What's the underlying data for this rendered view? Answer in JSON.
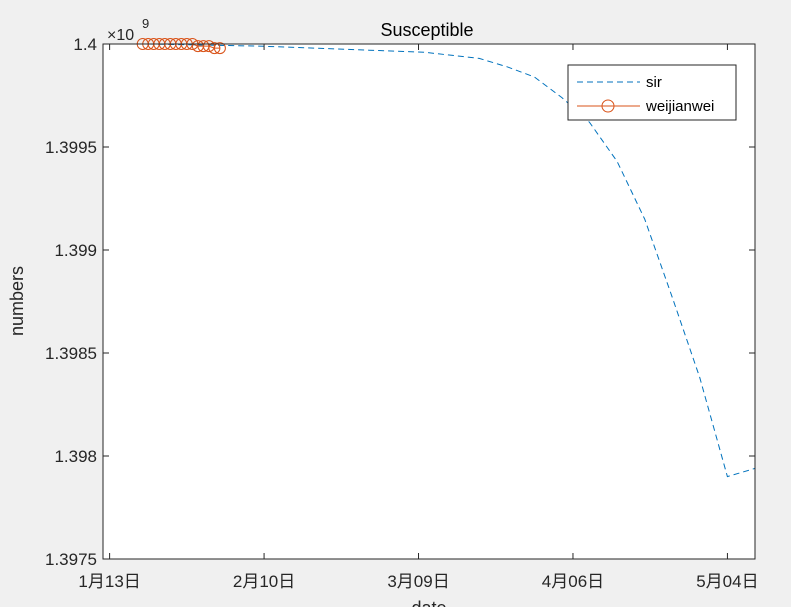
{
  "chart_data": {
    "type": "line",
    "title": "Susceptible",
    "xlabel": "date",
    "ylabel": "numbers",
    "y_exponent_prefix": "×10",
    "y_exponent_power": "9",
    "xlim": [
      "2020-01-13",
      "2020-05-09"
    ],
    "ylim": [
      1.3975,
      1.4
    ],
    "x_ticks": [
      {
        "date": "2020-01-13",
        "label": "1月13日"
      },
      {
        "date": "2020-02-10",
        "label": "2月10日"
      },
      {
        "date": "2020-03-09",
        "label": "3月09日"
      },
      {
        "date": "2020-04-06",
        "label": "4月06日"
      },
      {
        "date": "2020-05-04",
        "label": "5月04日"
      }
    ],
    "y_ticks": [
      {
        "value": 1.3975,
        "label": "1.3975"
      },
      {
        "value": 1.398,
        "label": "1.398"
      },
      {
        "value": 1.3985,
        "label": "1.3985"
      },
      {
        "value": 1.399,
        "label": "1.399"
      },
      {
        "value": 1.3995,
        "label": "1.3995"
      },
      {
        "value": 1.4,
        "label": "1.4"
      }
    ],
    "legend_position": "top-right",
    "grid": false,
    "series": [
      {
        "name": "sir",
        "style": "dashed",
        "color": "#0072bd",
        "points": [
          [
            "2020-01-20",
            1.4
          ],
          [
            "2020-02-09",
            1.39999
          ],
          [
            "2020-02-19",
            1.39998
          ],
          [
            "2020-02-29",
            1.39997
          ],
          [
            "2020-03-10",
            1.39996
          ],
          [
            "2020-03-20",
            1.39993
          ],
          [
            "2020-03-25",
            1.39989
          ],
          [
            "2020-03-30",
            1.39984
          ],
          [
            "2020-04-04",
            1.39974
          ],
          [
            "2020-04-09",
            1.39962
          ],
          [
            "2020-04-14",
            1.39943
          ],
          [
            "2020-04-19",
            1.39915
          ],
          [
            "2020-04-24",
            1.39877
          ],
          [
            "2020-04-29",
            1.39838
          ],
          [
            "2020-05-04",
            1.3979
          ],
          [
            "2020-05-09",
            1.39794
          ]
        ]
      },
      {
        "name": "weijianwei",
        "style": "solid-circle",
        "color": "#d95319",
        "points": [
          [
            "2020-01-19",
            1.4
          ],
          [
            "2020-01-20",
            1.4
          ],
          [
            "2020-01-21",
            1.4
          ],
          [
            "2020-01-22",
            1.4
          ],
          [
            "2020-01-23",
            1.4
          ],
          [
            "2020-01-24",
            1.4
          ],
          [
            "2020-01-25",
            1.4
          ],
          [
            "2020-01-26",
            1.4
          ],
          [
            "2020-01-27",
            1.4
          ],
          [
            "2020-01-28",
            1.4
          ],
          [
            "2020-01-29",
            1.39999
          ],
          [
            "2020-01-30",
            1.39999
          ],
          [
            "2020-01-31",
            1.39999
          ],
          [
            "2020-02-01",
            1.39998
          ],
          [
            "2020-02-02",
            1.39998
          ]
        ]
      }
    ]
  }
}
